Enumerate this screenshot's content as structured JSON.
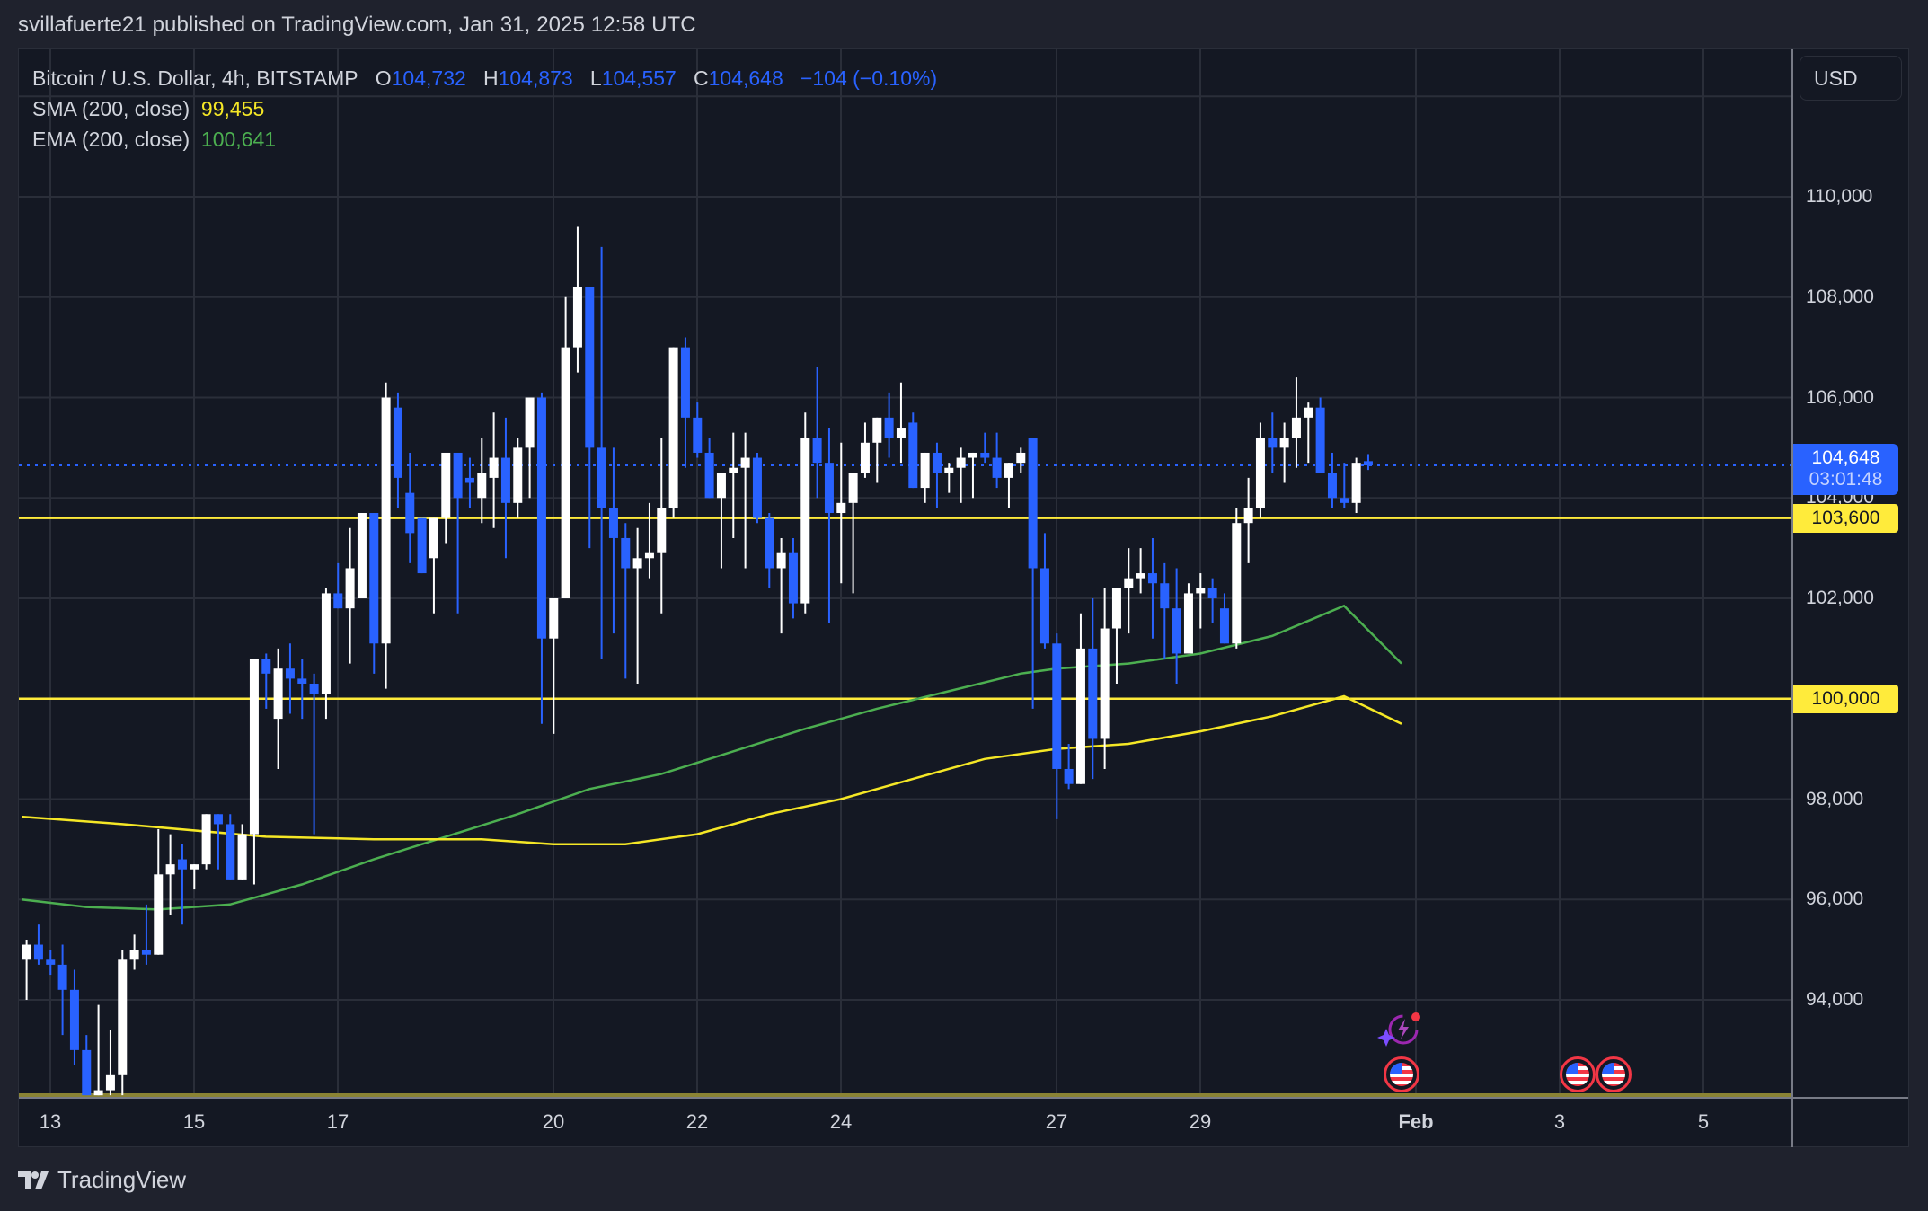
{
  "header": {
    "publisher_line": "svillafuerte21 published on TradingView.com, Jan 31, 2025 12:58 UTC"
  },
  "legend": {
    "symbol": "Bitcoin / U.S. Dollar, 4h, BITSTAMP",
    "o_label": "O",
    "o_value": "104,732",
    "h_label": "H",
    "h_value": "104,873",
    "l_label": "L",
    "l_value": "104,557",
    "c_label": "C",
    "c_value": "104,648",
    "change": "−104 (−0.10%)",
    "sma_label": "SMA (200, close)",
    "sma_value": "99,455",
    "ema_label": "EMA (200, close)",
    "ema_value": "100,641"
  },
  "price_axis": {
    "currency_button": "USD",
    "ticks": [
      "110,000",
      "108,000",
      "106,000",
      "104,000",
      "102,000",
      "100,000",
      "98,000",
      "96,000",
      "94,000"
    ],
    "tick_values": [
      110000,
      108000,
      106000,
      104000,
      102000,
      100000,
      98000,
      96000,
      94000
    ],
    "last_price_tag": "104,648",
    "countdown": "03:01:48",
    "level_tags": [
      {
        "label": "103,600",
        "value": 103600
      },
      {
        "label": "100,000",
        "value": 100000
      }
    ]
  },
  "time_axis": {
    "ticks": [
      {
        "label": "13",
        "day": 13,
        "bold": false
      },
      {
        "label": "15",
        "day": 15,
        "bold": false
      },
      {
        "label": "17",
        "day": 17,
        "bold": false
      },
      {
        "label": "20",
        "day": 20,
        "bold": false
      },
      {
        "label": "22",
        "day": 22,
        "bold": false
      },
      {
        "label": "24",
        "day": 24,
        "bold": false
      },
      {
        "label": "27",
        "day": 27,
        "bold": false
      },
      {
        "label": "29",
        "day": 29,
        "bold": false
      },
      {
        "label": "Feb",
        "day": 32,
        "bold": true
      },
      {
        "label": "3",
        "day": 34,
        "bold": false
      },
      {
        "label": "5",
        "day": 36,
        "bold": false
      }
    ]
  },
  "events": [
    {
      "type": "earnings-spark",
      "day": 31.8
    },
    {
      "type": "us-economic-event",
      "day": 31.8
    },
    {
      "type": "us-economic-event",
      "day": 34.25
    },
    {
      "type": "us-economic-event",
      "day": 34.75
    }
  ],
  "branding": {
    "logo_text": "TradingView"
  },
  "colors": {
    "up": "#ffffff",
    "down": "#2962ff",
    "sma": "#f5e726",
    "ema": "#4caf50",
    "level": "#ffeb3b",
    "grid": "#2a2e39",
    "background": "#141823",
    "page": "#1f222d"
  },
  "chart_data": {
    "type": "candlestick",
    "title": "Bitcoin / U.S. Dollar, 4h, BITSTAMP",
    "xlabel": "",
    "ylabel": "USD",
    "ylim": [
      92100,
      112500
    ],
    "x_range_days": [
      12.65,
      37.0
    ],
    "grid": true,
    "legend_position": "top-left",
    "horizontal_levels": [
      103600,
      100000
    ],
    "last_price": 104648,
    "candle_start_day": 12.67,
    "candle_step_days": 0.16667,
    "candles": [
      [
        94800,
        95200,
        94000,
        95100
      ],
      [
        95100,
        95500,
        94700,
        94800
      ],
      [
        94800,
        95000,
        94500,
        94700
      ],
      [
        94700,
        95100,
        93300,
        94200
      ],
      [
        94200,
        94600,
        92700,
        93000
      ],
      [
        93000,
        93300,
        92100,
        92100
      ],
      [
        92100,
        93900,
        92100,
        92200
      ],
      [
        92200,
        93400,
        92100,
        92500
      ],
      [
        92500,
        95000,
        92100,
        94800
      ],
      [
        94800,
        95300,
        94600,
        95000
      ],
      [
        95000,
        95900,
        94700,
        94900
      ],
      [
        94900,
        97400,
        94900,
        96500
      ],
      [
        96500,
        97300,
        95700,
        96700
      ],
      [
        96800,
        97100,
        95500,
        96600
      ],
      [
        96600,
        96700,
        96200,
        96700
      ],
      [
        96700,
        97700,
        96600,
        97700
      ],
      [
        97700,
        97300,
        96600,
        97500
      ],
      [
        97500,
        97700,
        96500,
        96400
      ],
      [
        96400,
        97500,
        96400,
        97300
      ],
      [
        97300,
        100300,
        96300,
        100800
      ],
      [
        100800,
        100900,
        99800,
        100500
      ],
      [
        99600,
        101000,
        98600,
        100600
      ],
      [
        100600,
        101100,
        99700,
        100400
      ],
      [
        100400,
        100800,
        99600,
        100300
      ],
      [
        100300,
        100500,
        97300,
        100100
      ],
      [
        100100,
        102200,
        99600,
        102100
      ],
      [
        102100,
        102700,
        102000,
        101800
      ],
      [
        101800,
        103400,
        100700,
        102600
      ],
      [
        102000,
        102600,
        102900,
        103700
      ],
      [
        103700,
        103500,
        100500,
        101100
      ],
      [
        101100,
        106300,
        100200,
        106000
      ],
      [
        105800,
        106100,
        103800,
        104400
      ],
      [
        104100,
        104900,
        102700,
        103300
      ],
      [
        103600,
        103600,
        102500,
        102500
      ],
      [
        102800,
        103200,
        101700,
        103600
      ],
      [
        103600,
        104300,
        103100,
        104900
      ],
      [
        104900,
        104800,
        101700,
        104000
      ],
      [
        104400,
        104800,
        103800,
        104300
      ],
      [
        104000,
        105200,
        103500,
        104500
      ],
      [
        104400,
        105700,
        103400,
        104800
      ],
      [
        104800,
        105600,
        102800,
        103900
      ],
      [
        103900,
        105200,
        103600,
        105000
      ],
      [
        105000,
        106000,
        104000,
        106000
      ],
      [
        106000,
        106100,
        99500,
        101200
      ],
      [
        101200,
        101700,
        99300,
        102000
      ],
      [
        102000,
        108000,
        102000,
        107000
      ],
      [
        107000,
        109400,
        106500,
        108200
      ],
      [
        108200,
        108200,
        103000,
        105000
      ],
      [
        105000,
        109000,
        100800,
        103800
      ],
      [
        103800,
        105000,
        101300,
        103200
      ],
      [
        103200,
        103500,
        100400,
        102600
      ],
      [
        102600,
        103400,
        100300,
        102800
      ],
      [
        102800,
        103900,
        102400,
        102900
      ],
      [
        102900,
        105200,
        101700,
        103800
      ],
      [
        103800,
        106900,
        103600,
        107000
      ],
      [
        107000,
        107200,
        104600,
        105600
      ],
      [
        105600,
        105900,
        104800,
        104900
      ],
      [
        104900,
        105200,
        104000,
        104000
      ],
      [
        104000,
        104500,
        102600,
        104500
      ],
      [
        104500,
        105300,
        103200,
        104600
      ],
      [
        104600,
        105300,
        102600,
        104800
      ],
      [
        104800,
        104900,
        103500,
        103600
      ],
      [
        103600,
        103700,
        102200,
        102600
      ],
      [
        102600,
        103200,
        101300,
        102900
      ],
      [
        102900,
        103200,
        101600,
        101900
      ],
      [
        101900,
        105700,
        101700,
        105200
      ],
      [
        105200,
        106600,
        104000,
        104700
      ],
      [
        104700,
        105400,
        101500,
        103700
      ],
      [
        103700,
        105100,
        102300,
        103900
      ],
      [
        103900,
        104400,
        102100,
        104500
      ],
      [
        104500,
        105500,
        104400,
        105100
      ],
      [
        105100,
        105600,
        104300,
        105600
      ],
      [
        105600,
        106100,
        104800,
        105200
      ],
      [
        105200,
        106300,
        104700,
        105400
      ],
      [
        105500,
        105700,
        104600,
        104200
      ],
      [
        104200,
        104900,
        103900,
        104900
      ],
      [
        104900,
        105100,
        103800,
        104500
      ],
      [
        104500,
        104700,
        104100,
        104600
      ],
      [
        104600,
        105000,
        103900,
        104800
      ],
      [
        104800,
        104900,
        104000,
        104900
      ],
      [
        104900,
        105300,
        104700,
        104800
      ],
      [
        104800,
        105300,
        104200,
        104400
      ],
      [
        104400,
        104600,
        103800,
        104700
      ],
      [
        104700,
        105000,
        104500,
        104900
      ],
      [
        105200,
        105200,
        99800,
        102600
      ],
      [
        102600,
        103300,
        101000,
        101100
      ],
      [
        101100,
        101300,
        97600,
        98600
      ],
      [
        98600,
        99100,
        98200,
        98300
      ],
      [
        98300,
        101700,
        98400,
        101000
      ],
      [
        101000,
        102000,
        98400,
        99200
      ],
      [
        99200,
        102200,
        98600,
        101400
      ],
      [
        101400,
        101900,
        100300,
        102200
      ],
      [
        102200,
        103000,
        101300,
        102400
      ],
      [
        102400,
        103000,
        102100,
        102500
      ],
      [
        102500,
        103200,
        101200,
        102300
      ],
      [
        102300,
        102700,
        100800,
        101800
      ],
      [
        101800,
        102600,
        100300,
        100900
      ],
      [
        100900,
        102300,
        100900,
        102100
      ],
      [
        102100,
        102500,
        101400,
        102200
      ],
      [
        102200,
        102400,
        101500,
        102000
      ],
      [
        101800,
        102100,
        101500,
        101100
      ],
      [
        101100,
        103800,
        101000,
        103500
      ],
      [
        103500,
        104400,
        102700,
        103800
      ],
      [
        103800,
        105500,
        103600,
        105200
      ],
      [
        105200,
        105700,
        104500,
        105000
      ],
      [
        105000,
        105500,
        104300,
        105200
      ],
      [
        105200,
        106400,
        104600,
        105600
      ],
      [
        105600,
        105900,
        104700,
        105800
      ],
      [
        105800,
        106000,
        104900,
        104500
      ],
      [
        104500,
        104900,
        103800,
        104000
      ],
      [
        104000,
        104700,
        103800,
        103900
      ],
      [
        103900,
        104800,
        103700,
        104700
      ],
      [
        104732,
        104873,
        104557,
        104648
      ]
    ],
    "sma": {
      "name": "SMA (200, close)",
      "points": [
        [
          12.6,
          97650
        ],
        [
          14,
          97500
        ],
        [
          16,
          97250
        ],
        [
          17.5,
          97200
        ],
        [
          19,
          97200
        ],
        [
          20,
          97100
        ],
        [
          21,
          97100
        ],
        [
          22,
          97300
        ],
        [
          23,
          97700
        ],
        [
          24,
          98000
        ],
        [
          25,
          98400
        ],
        [
          26,
          98800
        ],
        [
          27,
          99000
        ],
        [
          28,
          99100
        ],
        [
          29,
          99350
        ],
        [
          30,
          99650
        ],
        [
          31,
          100050
        ],
        [
          31.8,
          99455
        ]
      ]
    },
    "ema": {
      "name": "EMA (200, close)",
      "points": [
        [
          12.6,
          96000
        ],
        [
          13.5,
          95850
        ],
        [
          14.5,
          95800
        ],
        [
          15.5,
          95900
        ],
        [
          16.5,
          96300
        ],
        [
          17.5,
          96800
        ],
        [
          18.5,
          97250
        ],
        [
          19.5,
          97700
        ],
        [
          20.5,
          98200
        ],
        [
          21.5,
          98500
        ],
        [
          22.5,
          98950
        ],
        [
          23.5,
          99400
        ],
        [
          24.5,
          99800
        ],
        [
          25.5,
          100150
        ],
        [
          26.5,
          100500
        ],
        [
          27,
          100600
        ],
        [
          28,
          100700
        ],
        [
          29,
          100900
        ],
        [
          30,
          101250
        ],
        [
          31,
          101850
        ],
        [
          31.8,
          100641
        ]
      ]
    }
  }
}
